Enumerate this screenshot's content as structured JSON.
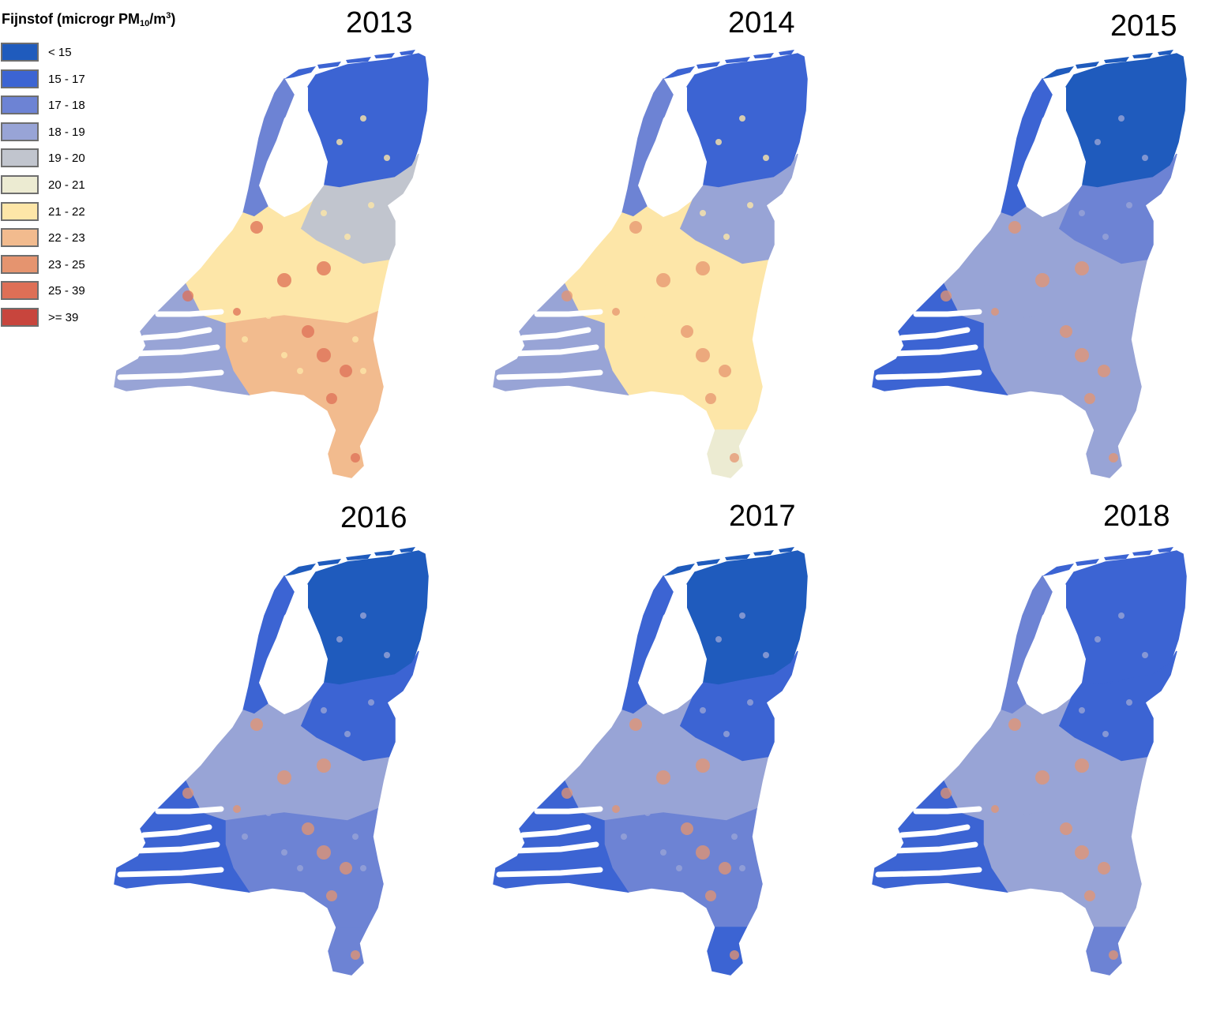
{
  "legend": {
    "title_main": "Fijnstof (microgr PM",
    "title_sub": "10",
    "title_mid": "/m",
    "title_sup": "3",
    "title_end": ")",
    "classes": [
      {
        "label": "< 15",
        "color": "#1f5bbd"
      },
      {
        "label": "15 - 17",
        "color": "#3c64d3"
      },
      {
        "label": "17 - 18",
        "color": "#6d83d4"
      },
      {
        "label": "18 - 19",
        "color": "#98a4d6"
      },
      {
        "label": "19 - 20",
        "color": "#c1c5ce"
      },
      {
        "label": "20 - 21",
        "color": "#ecebd2"
      },
      {
        "label": "21 - 22",
        "color": "#fde6a8"
      },
      {
        "label": "22 - 23",
        "color": "#f2bb8e"
      },
      {
        "label": "23 - 25",
        "color": "#e5946f"
      },
      {
        "label": "25 - 39",
        "color": "#de6f56"
      },
      {
        "label": ">= 39",
        "color": "#c8453d"
      }
    ]
  },
  "maps": [
    {
      "year": "2013",
      "north": "#3c64d3",
      "northwest": "#6d83d4",
      "east": "#c1c5ce",
      "center": "#fde6a8",
      "south": "#f2bb8e",
      "southwest": "#98a4d6",
      "limburg": "#f2bb8e",
      "hotspot": "#de6f56"
    },
    {
      "year": "2014",
      "north": "#3c64d3",
      "northwest": "#6d83d4",
      "east": "#98a4d6",
      "center": "#fde6a8",
      "south": "#fde6a8",
      "southwest": "#98a4d6",
      "limburg": "#ecebd2",
      "hotspot": "#e5946f"
    },
    {
      "year": "2015",
      "north": "#1f5bbd",
      "northwest": "#3c64d3",
      "east": "#6d83d4",
      "center": "#98a4d6",
      "south": "#98a4d6",
      "southwest": "#3c64d3",
      "limburg": "#98a4d6",
      "hotspot": "#e5946f"
    },
    {
      "year": "2016",
      "north": "#1f5bbd",
      "northwest": "#3c64d3",
      "east": "#3c64d3",
      "center": "#98a4d6",
      "south": "#6d83d4",
      "southwest": "#3c64d3",
      "limburg": "#6d83d4",
      "hotspot": "#e5946f"
    },
    {
      "year": "2017",
      "north": "#1f5bbd",
      "northwest": "#3c64d3",
      "east": "#3c64d3",
      "center": "#98a4d6",
      "south": "#6d83d4",
      "southwest": "#3c64d3",
      "limburg": "#3c64d3",
      "hotspot": "#e5946f"
    },
    {
      "year": "2018",
      "north": "#3c64d3",
      "northwest": "#6d83d4",
      "east": "#3c64d3",
      "center": "#98a4d6",
      "south": "#98a4d6",
      "southwest": "#3c64d3",
      "limburg": "#6d83d4",
      "hotspot": "#e5946f"
    }
  ]
}
